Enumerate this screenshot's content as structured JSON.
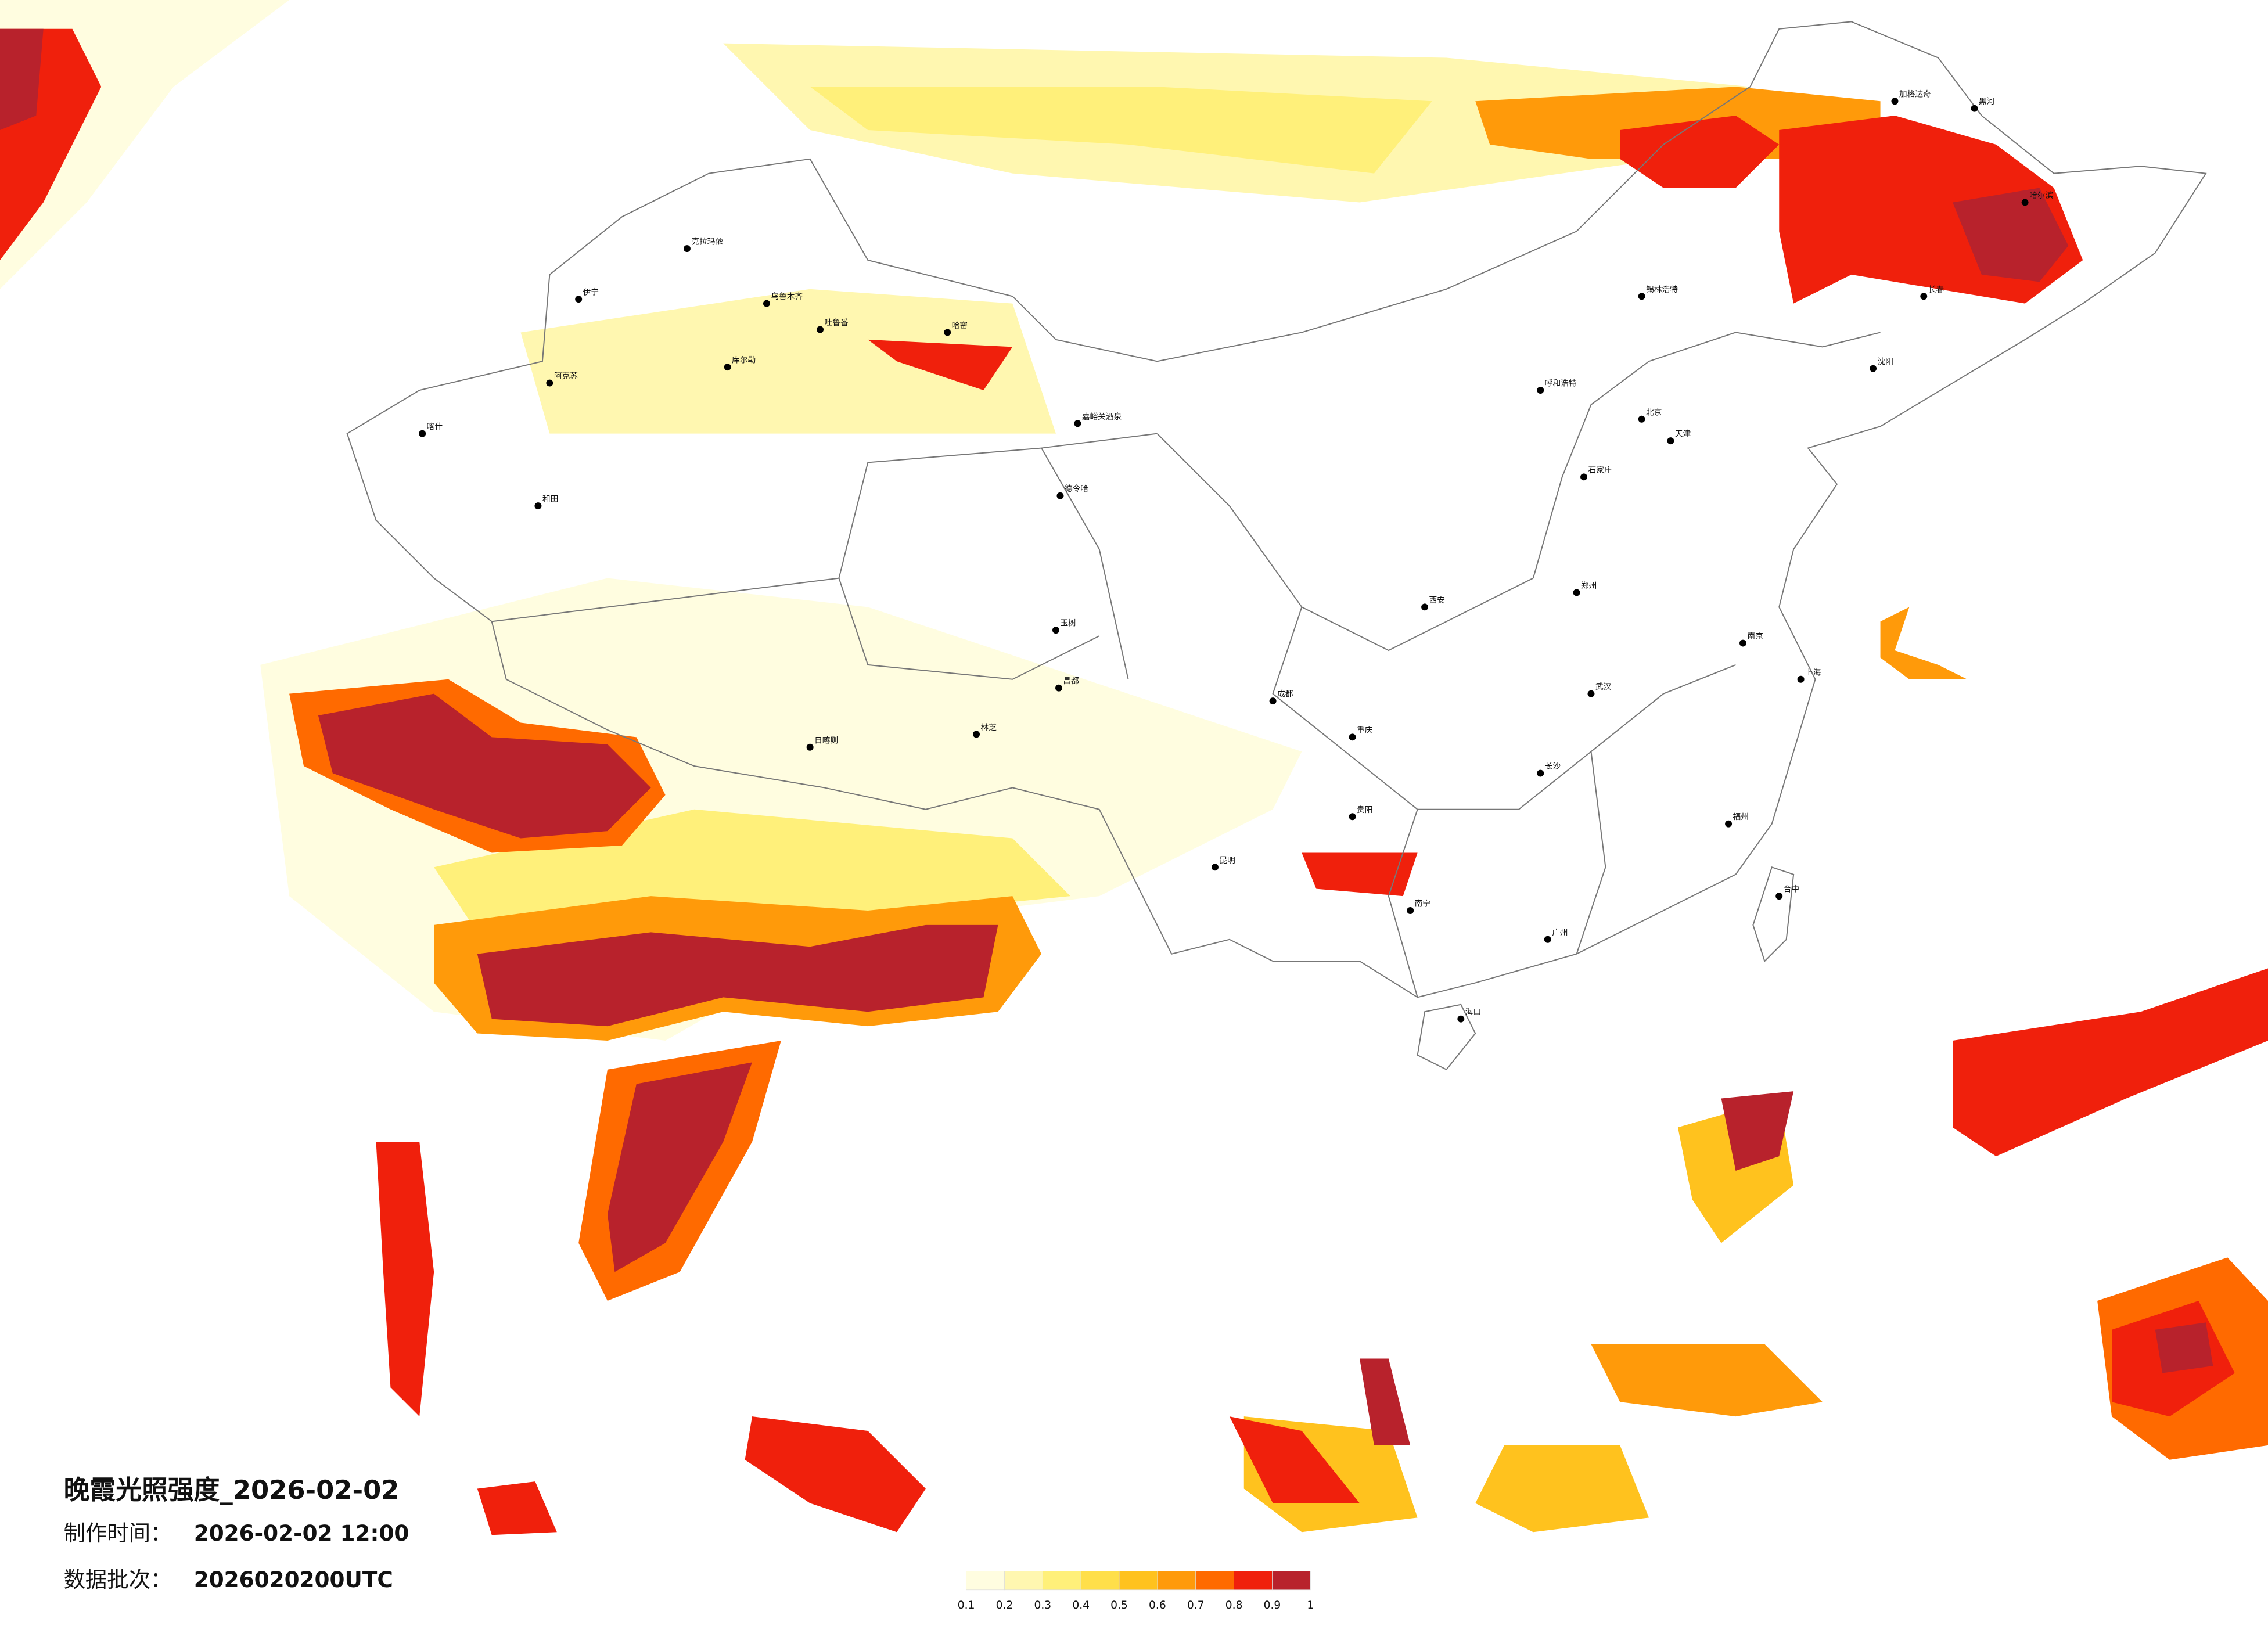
{
  "map": {
    "title": "晚霞光照强度_2026-02-02",
    "made_label": "制作时间：",
    "made_value": "2026-02-02 12:00",
    "batch_label": "数据批次：",
    "batch_value": "2026020200UTC",
    "colorbar": {
      "colors": [
        "#fffde0",
        "#fff7b0",
        "#fff07a",
        "#ffdf4a",
        "#ffc21e",
        "#ff9a0a",
        "#ff6a00",
        "#f0200c",
        "#b8222c"
      ],
      "ticks": [
        0.1,
        0.2,
        0.3,
        0.4,
        0.5,
        0.6,
        0.7,
        0.8,
        0.9,
        1
      ]
    },
    "cities": [
      "克拉玛依",
      "乌鲁木齐",
      "吐鲁番",
      "哈密",
      "伊宁",
      "阿克苏",
      "喀什",
      "和田",
      "库尔勒",
      "嘉峪关酒泉",
      "德令哈",
      "日喀则",
      "林芝",
      "昌都",
      "玉树",
      "呼和浩特",
      "锡林浩特",
      "北京",
      "天津",
      "石家庄",
      "郑州",
      "西安",
      "上海",
      "南京",
      "武汉",
      "长沙",
      "重庆",
      "成都",
      "昆明",
      "贵阳",
      "南宁",
      "广州",
      "福州",
      "台中",
      "海口",
      "哈尔滨",
      "长春",
      "沈阳",
      "加格达奇",
      "黑河"
    ]
  }
}
